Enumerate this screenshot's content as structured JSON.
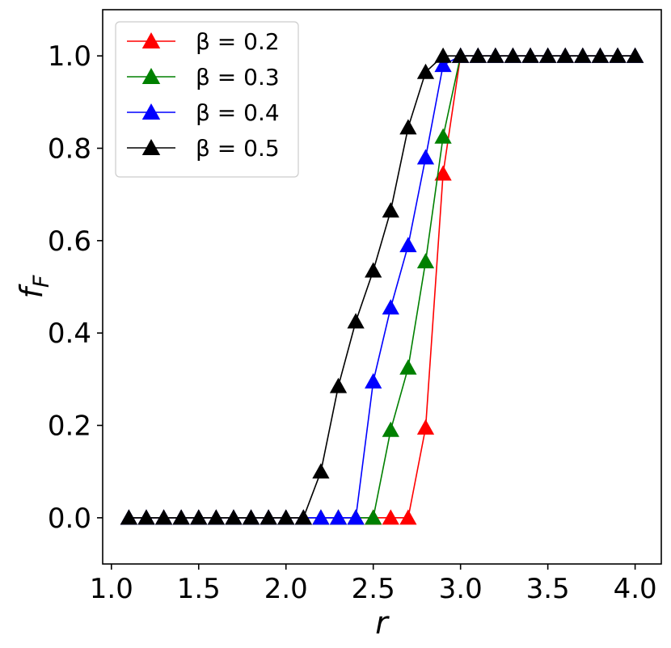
{
  "chart_data": {
    "type": "line",
    "xlabel": "r",
    "ylabel_main": "f",
    "ylabel_sub": "F",
    "xlim": [
      0.95,
      4.15
    ],
    "ylim": [
      -0.1,
      1.1
    ],
    "xticks": [
      1.0,
      1.5,
      2.0,
      2.5,
      3.0,
      3.5,
      4.0
    ],
    "xtick_labels": [
      "1.0",
      "1.5",
      "2.0",
      "2.5",
      "3.0",
      "3.5",
      "4.0"
    ],
    "yticks": [
      0.0,
      0.2,
      0.4,
      0.6,
      0.8,
      1.0
    ],
    "ytick_labels": [
      "0.0",
      "0.2",
      "0.4",
      "0.6",
      "0.8",
      "1.0"
    ],
    "grid": false,
    "legend_position": "top-left",
    "marker": "triangle-up",
    "x": [
      1.1,
      1.2,
      1.3,
      1.4,
      1.5,
      1.6,
      1.7,
      1.8,
      1.9,
      2.0,
      2.1,
      2.2,
      2.3,
      2.4,
      2.5,
      2.6,
      2.7,
      2.8,
      2.9,
      3.0,
      3.1,
      3.2,
      3.3,
      3.4,
      3.5,
      3.6,
      3.7,
      3.8,
      3.9,
      4.0
    ],
    "series": [
      {
        "name": "β = 0.2",
        "color": "#ff0000",
        "values": [
          0,
          0,
          0,
          0,
          0,
          0,
          0,
          0,
          0,
          0,
          0,
          0,
          0,
          0,
          0,
          0,
          0,
          0.195,
          0.745,
          1,
          1,
          1,
          1,
          1,
          1,
          1,
          1,
          1,
          1,
          1
        ]
      },
      {
        "name": "β = 0.3",
        "color": "#008000",
        "values": [
          0,
          0,
          0,
          0,
          0,
          0,
          0,
          0,
          0,
          0,
          0,
          0,
          0,
          0,
          0,
          0.19,
          0.325,
          0.555,
          0.825,
          1,
          1,
          1,
          1,
          1,
          1,
          1,
          1,
          1,
          1,
          1
        ]
      },
      {
        "name": "β = 0.4",
        "color": "#0000ff",
        "values": [
          0,
          0,
          0,
          0,
          0,
          0,
          0,
          0,
          0,
          0,
          0,
          0,
          0,
          0,
          0.295,
          0.455,
          0.59,
          0.78,
          0.98,
          1,
          1,
          1,
          1,
          1,
          1,
          1,
          1,
          1,
          1,
          1
        ]
      },
      {
        "name": "β = 0.5",
        "color": "#000000",
        "values": [
          0,
          0,
          0,
          0,
          0,
          0,
          0,
          0,
          0,
          0,
          0,
          0.1,
          0.285,
          0.425,
          0.535,
          0.665,
          0.845,
          0.965,
          1,
          1,
          1,
          1,
          1,
          1,
          1,
          1,
          1,
          1,
          1,
          1
        ]
      }
    ]
  }
}
